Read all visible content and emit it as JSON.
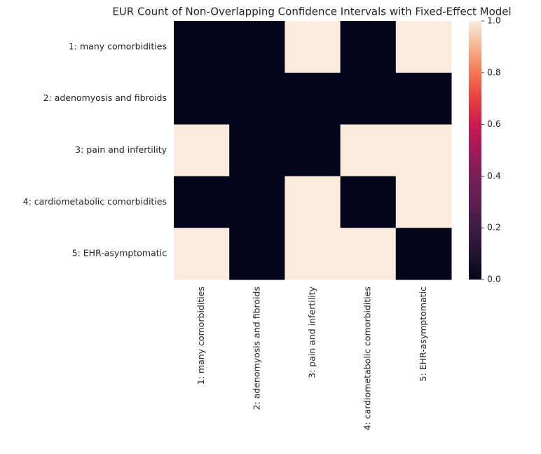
{
  "chart_data": {
    "type": "heatmap",
    "title": "EUR Count of Non-Overlapping Confidence Intervals with Fixed-Effect Model",
    "xlabel": "",
    "ylabel": "",
    "rows": [
      "1: many comorbidities",
      "2: adenomyosis and fibroids",
      "3: pain and infertility",
      "4: cardiometabolic comorbidities",
      "5: EHR-asymptomatic"
    ],
    "columns": [
      "1: many comorbidities",
      "2: adenomyosis and fibroids",
      "3: pain and infertility",
      "4: cardiometabolic comorbidities",
      "5: EHR-asymptomatic"
    ],
    "values": [
      [
        0,
        0,
        1,
        0,
        1
      ],
      [
        0,
        0,
        0,
        0,
        0
      ],
      [
        1,
        0,
        0,
        1,
        1
      ],
      [
        0,
        0,
        1,
        0,
        1
      ],
      [
        1,
        0,
        1,
        1,
        0
      ]
    ],
    "colorbar": {
      "range": [
        0.0,
        1.0
      ],
      "ticks": [
        "0.0",
        "0.2",
        "0.4",
        "0.6",
        "0.8",
        "1.0"
      ],
      "colormap": "rocket",
      "low_color": "#03051a",
      "high_color": "#faebdd"
    },
    "grid": false,
    "legend": "colorbar-right"
  }
}
